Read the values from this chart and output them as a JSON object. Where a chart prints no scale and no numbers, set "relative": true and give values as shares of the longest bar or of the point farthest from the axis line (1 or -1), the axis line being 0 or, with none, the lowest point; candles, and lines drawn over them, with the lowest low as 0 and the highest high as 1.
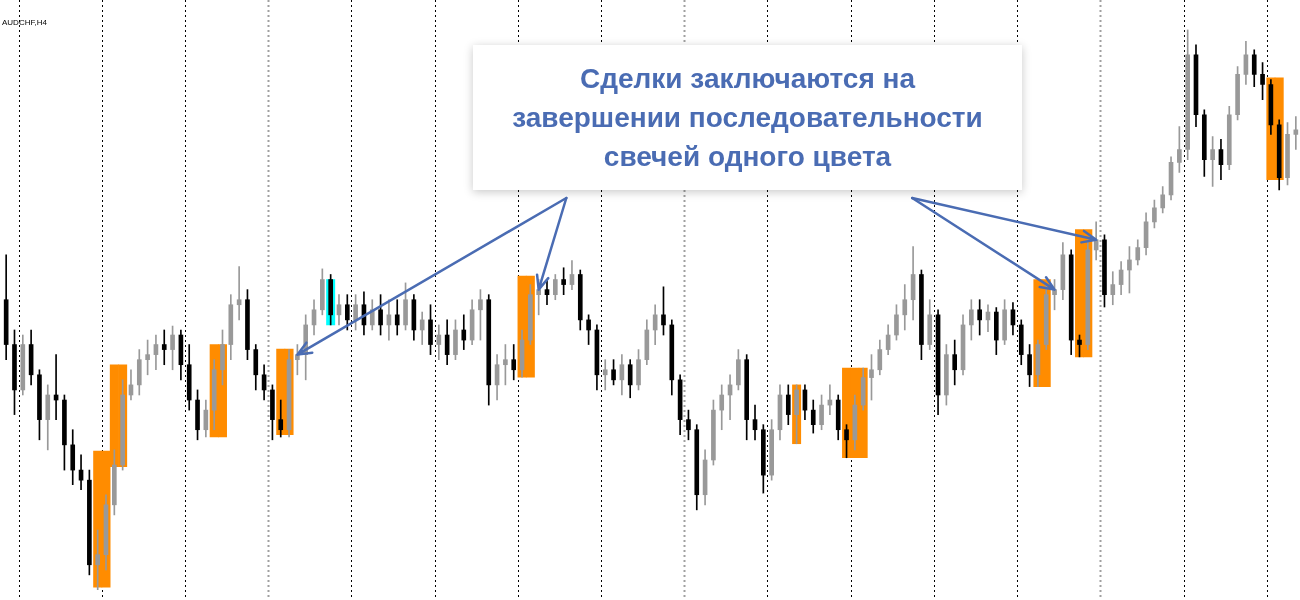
{
  "chart_data": {
    "type": "candlestick",
    "title": "AUDCHF,H4",
    "annotations": [
      "Сделки заключаются на\nзавершении последовательности\nсвечей одного цвета"
    ],
    "relative": true,
    "categories": [
      null,
      null,
      null,
      null,
      null,
      null,
      null,
      null,
      null,
      null,
      null,
      null,
      null,
      null,
      null,
      null,
      null,
      null,
      null,
      null,
      null,
      null,
      null,
      null,
      null,
      null,
      null,
      null,
      null,
      null,
      null,
      null,
      null,
      null,
      null,
      null,
      null,
      null,
      null,
      null,
      null,
      null,
      null,
      null,
      null,
      null,
      null,
      null,
      null,
      null,
      null,
      null,
      null,
      null,
      null,
      null,
      null,
      null,
      null,
      null,
      null,
      null,
      null,
      null,
      null,
      null,
      null,
      null,
      null,
      null,
      null,
      null,
      null,
      null,
      null,
      null,
      null,
      null,
      null,
      null,
      null,
      null,
      null,
      null,
      null,
      null,
      null,
      null,
      null,
      null,
      null,
      null,
      null,
      null,
      null,
      null,
      null,
      null,
      null,
      null,
      null,
      null,
      null,
      null,
      null,
      null,
      null,
      null,
      null,
      null,
      null,
      null,
      null,
      null,
      null,
      null,
      null,
      null,
      null,
      null,
      null,
      null,
      null,
      null,
      null,
      null,
      null,
      null,
      null,
      null,
      null,
      null,
      null,
      null,
      null,
      null,
      null,
      null,
      null,
      null,
      null,
      null,
      null,
      null,
      null,
      null,
      null,
      null,
      null,
      null,
      null,
      null,
      null,
      null,
      null,
      null
    ],
    "colors": [
      "#000000",
      "#000000",
      "#999999",
      "#000000",
      "#000000",
      "#999999",
      "#000000",
      "#000000",
      "#000000",
      "#000000",
      "#000000",
      "#999999",
      "#999999",
      "#999999",
      "#999999",
      "#999999",
      "#999999",
      "#999999",
      "#999999",
      "#000000",
      "#999999",
      "#000000",
      "#000000",
      "#000000",
      "#999999",
      "#999999",
      "#999999",
      "#999999",
      "#999999",
      "#000000",
      "#000000",
      "#000000",
      "#000000",
      "#000000",
      "#999999",
      "#999999",
      "#999999",
      "#999999",
      "#999999",
      "#000000",
      "#999999",
      "#000000",
      "#999999",
      "#000000",
      "#999999",
      "#000000",
      "#999999",
      "#000000",
      "#999999",
      "#000000",
      "#999999",
      "#000000",
      "#999999",
      "#000000",
      "#999999",
      "#000000",
      "#999999",
      "#999999",
      "#000000",
      "#999999",
      "#999999",
      "#000000",
      "#999999",
      "#999999",
      "#999999",
      "#000000",
      "#999999",
      "#000000",
      "#999999",
      "#000000",
      "#000000",
      "#000000",
      "#999999",
      "#000000",
      "#999999",
      "#000000",
      "#999999",
      "#999999",
      "#999999",
      "#000000",
      "#000000",
      "#000000",
      "#000000",
      "#000000",
      "#999999",
      "#999999",
      "#999999",
      "#999999",
      "#999999",
      "#000000",
      "#000000",
      "#000000",
      "#999999",
      "#999999",
      "#000000",
      "#999999",
      "#000000",
      "#000000",
      "#999999",
      "#999999",
      "#000000",
      "#000000",
      "#999999",
      "#999999",
      "#999999",
      "#999999",
      "#999999",
      "#999999",
      "#999999",
      "#999999",
      "#000000",
      "#999999",
      "#000000",
      "#999999",
      "#000000",
      "#999999",
      "#999999",
      "#000000",
      "#999999",
      "#000000",
      "#999999",
      "#000000",
      "#000000",
      "#000000",
      "#999999",
      "#999999",
      "#999999",
      "#999999",
      "#000000",
      "#000000",
      "#999999",
      "#999999",
      "#000000",
      "#999999",
      "#999999",
      "#999999",
      "#999999",
      "#999999",
      "#999999",
      "#999999",
      "#999999",
      "#999999",
      "#999999",
      "#000000",
      "#000000",
      "#999999",
      "#000000",
      "#999999",
      "#999999",
      "#999999",
      "#000000",
      "#000000",
      "#000000",
      "#000000",
      "#999999",
      "#999999"
    ],
    "ohlc": [
      [
        0.518,
        0.598,
        0.411,
        0.438
      ],
      [
        0.438,
        0.464,
        0.313,
        0.357
      ],
      [
        0.357,
        0.455,
        0.348,
        0.438
      ],
      [
        0.438,
        0.464,
        0.366,
        0.384
      ],
      [
        0.384,
        0.393,
        0.268,
        0.304
      ],
      [
        0.304,
        0.366,
        0.25,
        0.348
      ],
      [
        0.348,
        0.42,
        0.304,
        0.339
      ],
      [
        0.339,
        0.348,
        0.214,
        0.259
      ],
      [
        0.259,
        0.286,
        0.188,
        0.214
      ],
      [
        0.214,
        0.241,
        0.179,
        0.196
      ],
      [
        0.196,
        0.214,
        0.027,
        0.045
      ],
      [
        0.045,
        0.107,
        0,
        0.063
      ],
      [
        0.063,
        0.17,
        0.036,
        0.152
      ],
      [
        0.152,
        0.25,
        0.134,
        0.223
      ],
      [
        0.223,
        0.375,
        0.214,
        0.348
      ],
      [
        0.348,
        0.393,
        0.339,
        0.366
      ],
      [
        0.366,
        0.429,
        0.348,
        0.411
      ],
      [
        0.411,
        0.446,
        0.384,
        0.42
      ],
      [
        0.42,
        0.455,
        0.393,
        0.438
      ],
      [
        0.438,
        0.464,
        0.402,
        0.429
      ],
      [
        0.429,
        0.471,
        0.393,
        0.455
      ],
      [
        0.455,
        0.464,
        0.375,
        0.402
      ],
      [
        0.402,
        0.438,
        0.321,
        0.339
      ],
      [
        0.339,
        0.357,
        0.268,
        0.286
      ],
      [
        0.286,
        0.339,
        0.273,
        0.321
      ],
      [
        0.321,
        0.411,
        0.286,
        0.393
      ],
      [
        0.393,
        0.464,
        0.366,
        0.438
      ],
      [
        0.438,
        0.527,
        0.411,
        0.509
      ],
      [
        0.509,
        0.577,
        0.482,
        0.518
      ],
      [
        0.518,
        0.536,
        0.411,
        0.429
      ],
      [
        0.429,
        0.438,
        0.357,
        0.384
      ],
      [
        0.384,
        0.402,
        0.339,
        0.357
      ],
      [
        0.357,
        0.366,
        0.268,
        0.304
      ],
      [
        0.304,
        0.339,
        0.273,
        0.286
      ],
      [
        0.286,
        0.429,
        0.273,
        0.411
      ],
      [
        0.411,
        0.438,
        0.384,
        0.42
      ],
      [
        0.42,
        0.491,
        0.375,
        0.473
      ],
      [
        0.473,
        0.518,
        0.455,
        0.5
      ],
      [
        0.5,
        0.573,
        0.491,
        0.554
      ],
      [
        0.554,
        0.563,
        0.473,
        0.491
      ],
      [
        0.491,
        0.527,
        0.473,
        0.509
      ],
      [
        0.509,
        0.527,
        0.464,
        0.482
      ],
      [
        0.482,
        0.527,
        0.464,
        0.509
      ],
      [
        0.509,
        0.532,
        0.455,
        0.473
      ],
      [
        0.473,
        0.518,
        0.464,
        0.5
      ],
      [
        0.5,
        0.527,
        0.455,
        0.473
      ],
      [
        0.473,
        0.518,
        0.446,
        0.491
      ],
      [
        0.491,
        0.518,
        0.455,
        0.473
      ],
      [
        0.473,
        0.548,
        0.464,
        0.518
      ],
      [
        0.518,
        0.527,
        0.446,
        0.464
      ],
      [
        0.464,
        0.496,
        0.438,
        0.482
      ],
      [
        0.482,
        0.509,
        0.42,
        0.438
      ],
      [
        0.438,
        0.473,
        0.411,
        0.455
      ],
      [
        0.455,
        0.482,
        0.402,
        0.42
      ],
      [
        0.42,
        0.482,
        0.411,
        0.464
      ],
      [
        0.464,
        0.491,
        0.429,
        0.446
      ],
      [
        0.446,
        0.518,
        0.438,
        0.5
      ],
      [
        0.5,
        0.536,
        0.446,
        0.518
      ],
      [
        0.518,
        0.527,
        0.33,
        0.366
      ],
      [
        0.366,
        0.42,
        0.339,
        0.402
      ],
      [
        0.402,
        0.438,
        0.366,
        0.411
      ],
      [
        0.411,
        0.438,
        0.375,
        0.393
      ],
      [
        0.393,
        0.464,
        0.38,
        0.446
      ],
      [
        0.446,
        0.545,
        0.438,
        0.527
      ],
      [
        0.527,
        0.554,
        0.491,
        0.536
      ],
      [
        0.536,
        0.554,
        0.509,
        0.527
      ],
      [
        0.527,
        0.563,
        0.518,
        0.554
      ],
      [
        0.554,
        0.575,
        0.527,
        0.545
      ],
      [
        0.545,
        0.588,
        0.536,
        0.563
      ],
      [
        0.563,
        0.571,
        0.464,
        0.482
      ],
      [
        0.482,
        0.491,
        0.438,
        0.464
      ],
      [
        0.464,
        0.473,
        0.357,
        0.384
      ],
      [
        0.384,
        0.411,
        0.357,
        0.393
      ],
      [
        0.393,
        0.411,
        0.366,
        0.375
      ],
      [
        0.375,
        0.42,
        0.348,
        0.402
      ],
      [
        0.402,
        0.411,
        0.343,
        0.366
      ],
      [
        0.366,
        0.429,
        0.357,
        0.411
      ],
      [
        0.411,
        0.482,
        0.402,
        0.464
      ],
      [
        0.464,
        0.509,
        0.438,
        0.491
      ],
      [
        0.491,
        0.541,
        0.455,
        0.473
      ],
      [
        0.473,
        0.482,
        0.348,
        0.375
      ],
      [
        0.375,
        0.384,
        0.277,
        0.304
      ],
      [
        0.304,
        0.321,
        0.268,
        0.286
      ],
      [
        0.286,
        0.295,
        0.143,
        0.17
      ],
      [
        0.17,
        0.25,
        0.152,
        0.232
      ],
      [
        0.232,
        0.339,
        0.223,
        0.321
      ],
      [
        0.321,
        0.366,
        0.286,
        0.348
      ],
      [
        0.348,
        0.384,
        0.304,
        0.366
      ],
      [
        0.366,
        0.429,
        0.357,
        0.411
      ],
      [
        0.411,
        0.42,
        0.268,
        0.304
      ],
      [
        0.304,
        0.33,
        0.268,
        0.286
      ],
      [
        0.286,
        0.295,
        0.173,
        0.205
      ],
      [
        0.205,
        0.304,
        0.196,
        0.286
      ],
      [
        0.286,
        0.366,
        0.268,
        0.348
      ],
      [
        0.348,
        0.366,
        0.295,
        0.313
      ],
      [
        0.313,
        0.366,
        0.261,
        0.357
      ],
      [
        0.357,
        0.366,
        0.304,
        0.321
      ],
      [
        0.321,
        0.339,
        0.28,
        0.295
      ],
      [
        0.295,
        0.348,
        0.286,
        0.33
      ],
      [
        0.33,
        0.366,
        0.313,
        0.339
      ],
      [
        0.339,
        0.348,
        0.268,
        0.286
      ],
      [
        0.286,
        0.295,
        0.236,
        0.268
      ],
      [
        0.268,
        0.348,
        0.25,
        0.33
      ],
      [
        0.33,
        0.396,
        0.321,
        0.379
      ],
      [
        0.379,
        0.42,
        0.339,
        0.393
      ],
      [
        0.393,
        0.446,
        0.384,
        0.429
      ],
      [
        0.429,
        0.473,
        0.42,
        0.455
      ],
      [
        0.455,
        0.509,
        0.446,
        0.491
      ],
      [
        0.491,
        0.545,
        0.464,
        0.518
      ],
      [
        0.518,
        0.613,
        0.482,
        0.563
      ],
      [
        0.563,
        0.571,
        0.411,
        0.438
      ],
      [
        0.438,
        0.518,
        0.429,
        0.491
      ],
      [
        0.491,
        0.5,
        0.313,
        0.348
      ],
      [
        0.348,
        0.438,
        0.33,
        0.42
      ],
      [
        0.42,
        0.446,
        0.366,
        0.393
      ],
      [
        0.393,
        0.491,
        0.384,
        0.473
      ],
      [
        0.473,
        0.518,
        0.446,
        0.5
      ],
      [
        0.5,
        0.518,
        0.455,
        0.482
      ],
      [
        0.482,
        0.509,
        0.461,
        0.496
      ],
      [
        0.496,
        0.504,
        0.42,
        0.446
      ],
      [
        0.446,
        0.518,
        0.438,
        0.5
      ],
      [
        0.5,
        0.513,
        0.455,
        0.473
      ],
      [
        0.473,
        0.482,
        0.402,
        0.42
      ],
      [
        0.42,
        0.438,
        0.363,
        0.384
      ],
      [
        0.384,
        0.446,
        0.363,
        0.438
      ],
      [
        0.438,
        0.545,
        0.429,
        0.527
      ],
      [
        0.527,
        0.554,
        0.5,
        0.536
      ],
      [
        0.536,
        0.62,
        0.518,
        0.598
      ],
      [
        0.598,
        0.607,
        0.42,
        0.446
      ],
      [
        0.446,
        0.455,
        0.416,
        0.438
      ],
      [
        0.438,
        0.625,
        0.429,
        0.607
      ],
      [
        0.607,
        0.657,
        0.589,
        0.625
      ],
      [
        0.625,
        0.634,
        0.505,
        0.527
      ],
      [
        0.527,
        0.568,
        0.509,
        0.545
      ],
      [
        0.545,
        0.586,
        0.527,
        0.571
      ],
      [
        0.571,
        0.613,
        0.53,
        0.589
      ],
      [
        0.589,
        0.625,
        0.58,
        0.611
      ],
      [
        0.611,
        0.673,
        0.598,
        0.657
      ],
      [
        0.657,
        0.696,
        0.646,
        0.682
      ],
      [
        0.682,
        0.72,
        0.673,
        0.705
      ],
      [
        0.705,
        0.773,
        0.696,
        0.763
      ],
      [
        0.763,
        0.827,
        0.745,
        0.786
      ],
      [
        0.786,
        1,
        0.768,
        0.955
      ],
      [
        0.955,
        0.973,
        0.827,
        0.848
      ],
      [
        0.848,
        0.857,
        0.738,
        0.768
      ],
      [
        0.768,
        0.809,
        0.72,
        0.786
      ],
      [
        0.786,
        0.804,
        0.732,
        0.759
      ],
      [
        0.759,
        0.863,
        0.75,
        0.848
      ],
      [
        0.848,
        0.934,
        0.839,
        0.92
      ],
      [
        0.92,
        0.979,
        0.902,
        0.955
      ],
      [
        0.955,
        0.964,
        0.898,
        0.92
      ],
      [
        0.92,
        0.941,
        0.875,
        0.902
      ],
      [
        0.902,
        0.911,
        0.813,
        0.83
      ],
      [
        0.83,
        0.839,
        0.714,
        0.736
      ],
      [
        0.736,
        0.834,
        0.723,
        0.813
      ],
      [
        0.813,
        0.845,
        0.786,
        0.821
      ]
    ],
    "series": [
      {
        "type": "bar",
        "color": "#ff8c00",
        "base": [
          null,
          null,
          null,
          null,
          null,
          null,
          null,
          null,
          null,
          null,
          null,
          0.005,
          0.005,
          0.22,
          0.22,
          null,
          null,
          null,
          null,
          null,
          null,
          null,
          null,
          null,
          null,
          0.273,
          0.273,
          null,
          null,
          null,
          null,
          null,
          null,
          0.277,
          0.277,
          null,
          null,
          null,
          null,
          null,
          null,
          null,
          null,
          null,
          null,
          null,
          null,
          null,
          null,
          null,
          null,
          null,
          null,
          null,
          null,
          null,
          null,
          null,
          null,
          null,
          null,
          null,
          0.38,
          0.38,
          null,
          null,
          null,
          null,
          null,
          null,
          null,
          null,
          null,
          null,
          null,
          null,
          null,
          null,
          null,
          null,
          null,
          null,
          null,
          null,
          null,
          null,
          null,
          null,
          null,
          null,
          null,
          null,
          null,
          null,
          null,
          0.261,
          null,
          null,
          null,
          null,
          null,
          0.236,
          0.236,
          0.236,
          null,
          null,
          null,
          null,
          null,
          null,
          null,
          null,
          null,
          null,
          null,
          null,
          null,
          null,
          null,
          null,
          null,
          null,
          null,
          null,
          0.363,
          0.363,
          null,
          null,
          null,
          0.416,
          0.416,
          null,
          null,
          null,
          null,
          null,
          null,
          null,
          null,
          null,
          null,
          null,
          null,
          null,
          null,
          null,
          null,
          null,
          null,
          null,
          null,
          null,
          0.732,
          0.732,
          null,
          null
        ],
        "values": [
          null,
          null,
          null,
          null,
          null,
          null,
          null,
          null,
          null,
          null,
          null,
          0.243,
          0.243,
          0.182,
          0.182,
          null,
          null,
          null,
          null,
          null,
          null,
          null,
          null,
          null,
          null,
          0.165,
          0.165,
          null,
          null,
          null,
          null,
          null,
          null,
          0.153,
          0.153,
          null,
          null,
          null,
          null,
          null,
          null,
          null,
          null,
          null,
          null,
          null,
          null,
          null,
          null,
          null,
          null,
          null,
          null,
          null,
          null,
          null,
          null,
          null,
          null,
          null,
          null,
          null,
          0.18,
          0.18,
          null,
          null,
          null,
          null,
          null,
          null,
          null,
          null,
          null,
          null,
          null,
          null,
          null,
          null,
          null,
          null,
          null,
          null,
          null,
          null,
          null,
          null,
          null,
          null,
          null,
          null,
          null,
          null,
          null,
          null,
          null,
          0.105,
          null,
          null,
          null,
          null,
          null,
          0.16,
          0.16,
          0.16,
          null,
          null,
          null,
          null,
          null,
          null,
          null,
          null,
          null,
          null,
          null,
          null,
          null,
          null,
          null,
          null,
          null,
          null,
          null,
          null,
          0.191,
          0.191,
          null,
          null,
          null,
          0.227,
          0.227,
          null,
          null,
          null,
          null,
          null,
          null,
          null,
          null,
          null,
          null,
          null,
          null,
          null,
          null,
          null,
          null,
          null,
          null,
          null,
          null,
          null,
          0.182,
          0.182,
          null,
          null
        ]
      },
      {
        "type": "bar",
        "color": "#00ffff",
        "base": [
          null,
          null,
          null,
          null,
          null,
          null,
          null,
          null,
          null,
          null,
          null,
          null,
          null,
          null,
          null,
          null,
          null,
          null,
          null,
          null,
          null,
          null,
          null,
          null,
          null,
          null,
          null,
          null,
          null,
          null,
          null,
          null,
          null,
          null,
          null,
          null,
          null,
          null,
          null,
          0.473,
          null,
          null,
          null,
          null,
          null,
          null,
          null,
          null,
          null,
          null,
          null,
          null,
          null,
          null,
          null,
          null,
          null,
          null,
          null,
          null,
          null,
          null,
          null,
          null,
          null,
          null,
          null,
          null,
          null,
          null,
          null,
          null,
          null,
          null,
          null,
          null,
          null,
          null,
          null,
          null,
          null,
          null,
          null,
          null,
          null,
          null,
          null,
          null,
          null,
          null,
          null,
          null,
          null,
          null,
          null,
          null,
          null,
          null,
          null,
          null,
          null,
          null,
          null,
          null,
          null,
          null,
          null,
          null,
          null,
          null,
          null,
          null,
          null,
          null,
          null,
          null,
          null,
          null,
          null,
          null,
          null,
          null,
          null,
          null,
          null,
          null,
          null,
          null,
          null,
          null,
          null,
          null,
          null,
          null,
          null,
          null,
          null,
          null,
          null,
          null,
          null,
          null,
          null,
          null,
          null,
          null,
          null,
          null,
          null,
          null,
          null,
          null,
          null,
          null,
          null,
          null
        ],
        "values": [
          null,
          null,
          null,
          null,
          null,
          null,
          null,
          null,
          null,
          null,
          null,
          null,
          null,
          null,
          null,
          null,
          null,
          null,
          null,
          null,
          null,
          null,
          null,
          null,
          null,
          null,
          null,
          null,
          null,
          null,
          null,
          null,
          null,
          null,
          null,
          null,
          null,
          null,
          null,
          0.081,
          null,
          null,
          null,
          null,
          null,
          null,
          null,
          null,
          null,
          null,
          null,
          null,
          null,
          null,
          null,
          null,
          null,
          null,
          null,
          null,
          null,
          null,
          null,
          null,
          null,
          null,
          null,
          null,
          null,
          null,
          null,
          null,
          null,
          null,
          null,
          null,
          null,
          null,
          null,
          null,
          null,
          null,
          null,
          null,
          null,
          null,
          null,
          null,
          null,
          null,
          null,
          null,
          null,
          null,
          null,
          null,
          null,
          null,
          null,
          null,
          null,
          null,
          null,
          null,
          null,
          null,
          null,
          null,
          null,
          null,
          null,
          null,
          null,
          null,
          null,
          null,
          null,
          null,
          null,
          null,
          null,
          null,
          null,
          null,
          null,
          null,
          null,
          null,
          null,
          null,
          null,
          null,
          null,
          null,
          null,
          null,
          null,
          null,
          null,
          null,
          null,
          null,
          null,
          null,
          null,
          null,
          null,
          null,
          null,
          null,
          null,
          null,
          null,
          null,
          null,
          null
        ]
      }
    ]
  }
}
